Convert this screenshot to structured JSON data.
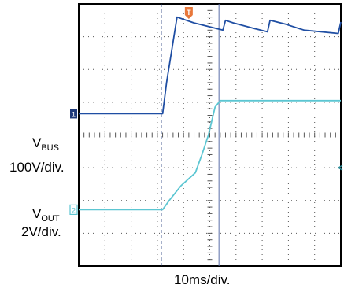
{
  "chart_data": {
    "type": "line",
    "title": "",
    "xlabel": "10ms/div.",
    "grid": true,
    "x_divisions": 10,
    "y_divisions": 8,
    "time_per_div_ms": 10,
    "trigger_position_div": 3.15,
    "cursor_position_div": 5.35,
    "series": [
      {
        "name": "VBUS",
        "scale": "100V/div.",
        "channel": "1",
        "color": "#1f4ea3",
        "x": [
          0,
          3.2,
          3.35,
          3.75,
          4.4,
          5.5,
          5.6,
          5.9,
          6.7,
          7.2,
          7.3,
          7.9,
          8.6,
          9.9,
          10.0
        ],
        "y": [
          4.65,
          4.65,
          5.6,
          7.6,
          7.42,
          7.2,
          7.5,
          7.42,
          7.25,
          7.15,
          7.5,
          7.38,
          7.2,
          7.1,
          7.45
        ]
      },
      {
        "name": "VOUT",
        "scale": "2V/div.",
        "channel": "2",
        "color": "#5cc6d2",
        "x": [
          0,
          3.2,
          3.45,
          3.9,
          4.45,
          4.7,
          4.95,
          5.2,
          5.4,
          10.0
        ],
        "y": [
          1.72,
          1.72,
          2.0,
          2.45,
          2.85,
          3.4,
          4.0,
          4.85,
          5.05,
          5.05
        ]
      }
    ],
    "annotations": [
      {
        "label_main": "V",
        "label_sub": "BUS",
        "scale": "100V/div."
      },
      {
        "label_main": "V",
        "label_sub": "OUT",
        "scale": "2V/div."
      }
    ],
    "markers": {
      "trigger": "T",
      "ch1": "1",
      "ch2": "2"
    }
  }
}
